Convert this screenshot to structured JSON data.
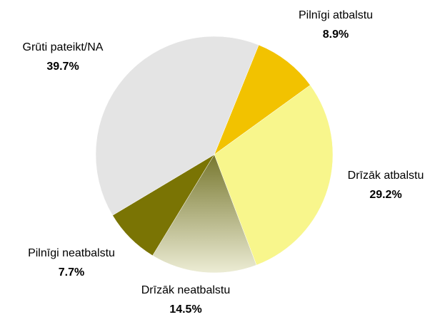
{
  "chart_data": {
    "type": "pie",
    "categories": [
      "Pilnīgi atbalstu",
      "Drīzāk atbalstu",
      "Drīzāk neatbalstu",
      "Pilnīgi neatbalstu",
      "Grūti pateikt/NA"
    ],
    "values": [
      8.9,
      29.2,
      14.5,
      7.7,
      39.7
    ],
    "value_labels": [
      "8.9%",
      "29.2%",
      "14.5%",
      "7.7%",
      "39.7%"
    ],
    "colors": [
      "#f2c200",
      "#f8f68c",
      "#c9c89a",
      "#7a7404",
      "#e4e4e4"
    ]
  }
}
